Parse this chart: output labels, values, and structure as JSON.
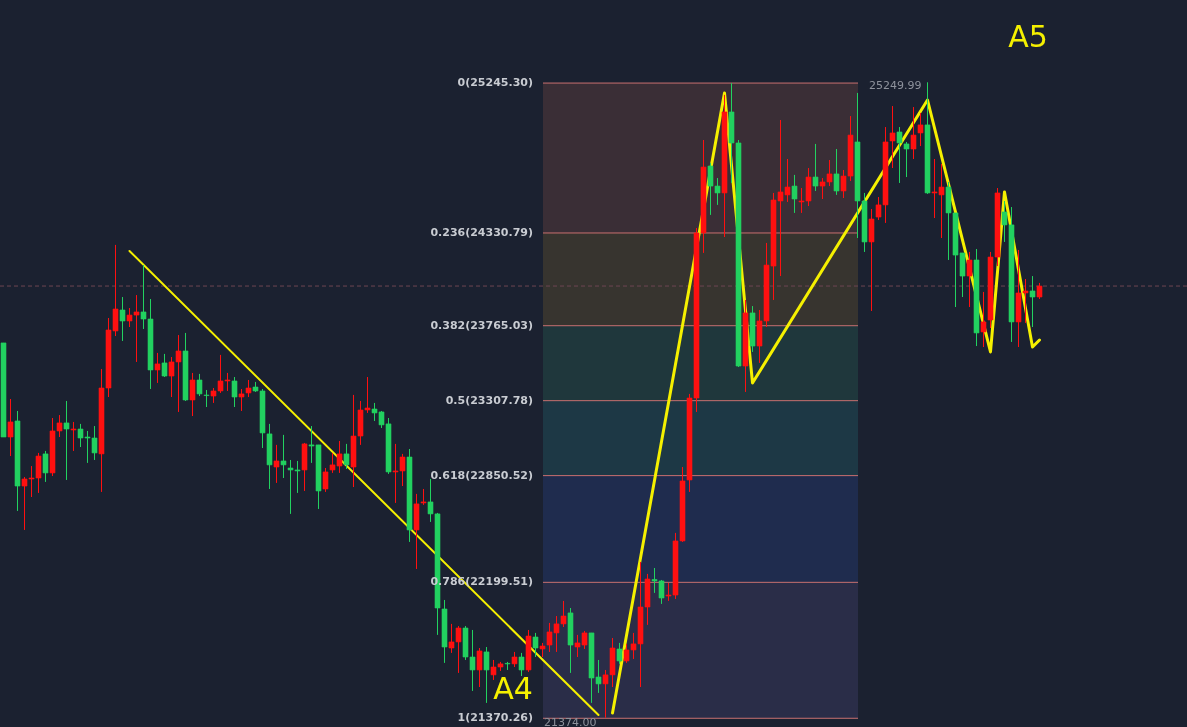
{
  "chart_data": {
    "type": "candlestick",
    "tick_labels": false,
    "ylim": [
      21317,
      25752
    ],
    "categories": [
      null,
      null,
      null,
      null,
      null,
      null,
      null,
      null,
      null,
      null,
      null,
      null,
      null,
      null,
      null,
      null,
      null,
      null,
      null,
      null,
      null,
      null,
      null,
      null,
      null,
      null,
      null,
      null,
      null,
      null,
      null,
      null,
      null,
      null,
      null,
      null,
      null,
      null,
      null,
      null,
      null,
      null,
      null,
      null,
      null,
      null,
      null,
      null,
      null,
      null,
      null,
      null,
      null,
      null,
      null,
      null,
      null,
      null,
      null,
      null,
      null,
      null,
      null,
      null,
      null,
      null,
      null,
      null,
      null,
      null,
      null,
      null,
      null,
      null,
      null,
      null,
      null,
      null,
      null,
      null,
      null,
      null,
      null,
      null,
      null,
      null,
      null,
      null,
      null,
      null,
      null,
      null,
      null,
      null,
      null,
      null,
      null,
      null,
      null,
      null,
      null,
      null,
      null,
      null,
      null,
      null,
      null,
      null,
      null,
      null,
      null,
      null,
      null,
      null,
      null,
      null,
      null,
      null,
      null,
      null,
      null,
      null,
      null,
      null,
      null,
      null,
      null,
      null,
      null,
      null,
      null,
      null,
      null,
      null,
      null,
      null,
      null,
      null,
      null,
      null,
      null,
      null,
      null,
      null,
      null,
      null,
      null,
      null,
      null
    ],
    "ohlc": [
      [
        23660,
        23660,
        23086,
        23086
      ],
      [
        23086,
        23318,
        22970,
        23178
      ],
      [
        23184,
        23245,
        22635,
        22787
      ],
      [
        22787,
        22842,
        22519,
        22830
      ],
      [
        22830,
        22909,
        22720,
        22836
      ],
      [
        22836,
        22989,
        22745,
        22970
      ],
      [
        22983,
        23001,
        22812,
        22867
      ],
      [
        22867,
        23202,
        22848,
        23123
      ],
      [
        23123,
        23220,
        23086,
        23172
      ],
      [
        23172,
        23306,
        22824,
        23135
      ],
      [
        23129,
        23178,
        23001,
        23135
      ],
      [
        23135,
        23166,
        23025,
        23080
      ],
      [
        23086,
        23123,
        22928,
        23080
      ],
      [
        23080,
        23153,
        22946,
        22989
      ],
      [
        22983,
        23501,
        22751,
        23385
      ],
      [
        23385,
        23812,
        23330,
        23739
      ],
      [
        23733,
        24258,
        23702,
        23867
      ],
      [
        23861,
        23940,
        23672,
        23794
      ],
      [
        23794,
        23873,
        23757,
        23830
      ],
      [
        23830,
        23952,
        23544,
        23849
      ],
      [
        23849,
        24135,
        23745,
        23806
      ],
      [
        23806,
        23928,
        23379,
        23495
      ],
      [
        23495,
        23599,
        23416,
        23532
      ],
      [
        23538,
        23593,
        23452,
        23458
      ],
      [
        23458,
        23574,
        23330,
        23544
      ],
      [
        23544,
        23708,
        23239,
        23611
      ],
      [
        23611,
        23721,
        23306,
        23312
      ],
      [
        23312,
        23477,
        23214,
        23434
      ],
      [
        23434,
        23471,
        23336,
        23349
      ],
      [
        23342,
        23373,
        23269,
        23339
      ],
      [
        23336,
        23385,
        23294,
        23367
      ],
      [
        23367,
        23587,
        23355,
        23428
      ],
      [
        23428,
        23477,
        23367,
        23434
      ],
      [
        23428,
        23452,
        23269,
        23330
      ],
      [
        23330,
        23379,
        23245,
        23349
      ],
      [
        23355,
        23434,
        23330,
        23385
      ],
      [
        23391,
        23422,
        23361,
        23367
      ],
      [
        23367,
        23379,
        23019,
        23111
      ],
      [
        23105,
        23166,
        22769,
        22916
      ],
      [
        22903,
        23038,
        22806,
        22940
      ],
      [
        22940,
        23099,
        22836,
        22916
      ],
      [
        22897,
        22946,
        22617,
        22885
      ],
      [
        22885,
        22940,
        22745,
        22879
      ],
      [
        22885,
        23050,
        22757,
        23044
      ],
      [
        23038,
        23153,
        22928,
        23031
      ],
      [
        23038,
        23038,
        22647,
        22757
      ],
      [
        22769,
        22897,
        22751,
        22873
      ],
      [
        22885,
        22989,
        22867,
        22916
      ],
      [
        22909,
        23062,
        22867,
        22983
      ],
      [
        22983,
        23044,
        22891,
        22916
      ],
      [
        22903,
        23343,
        22781,
        23092
      ],
      [
        23092,
        23306,
        23038,
        23251
      ],
      [
        23251,
        23452,
        23233,
        23263
      ],
      [
        23257,
        23294,
        23184,
        23233
      ],
      [
        23239,
        23245,
        23141,
        23160
      ],
      [
        23166,
        23202,
        22861,
        22873
      ],
      [
        22873,
        23044,
        22684,
        22879
      ],
      [
        22879,
        22983,
        22787,
        22964
      ],
      [
        22964,
        23013,
        22446,
        22519
      ],
      [
        22519,
        22739,
        22281,
        22678
      ],
      [
        22684,
        22769,
        22672,
        22690
      ],
      [
        22690,
        22830,
        22568,
        22617
      ],
      [
        22617,
        22623,
        21879,
        22043
      ],
      [
        22037,
        22092,
        21708,
        21805
      ],
      [
        21799,
        21946,
        21769,
        21836
      ],
      [
        21836,
        21933,
        21647,
        21921
      ],
      [
        21921,
        21933,
        21726,
        21744
      ],
      [
        21744,
        21909,
        21537,
        21665
      ],
      [
        21665,
        21799,
        21561,
        21781
      ],
      [
        21775,
        21805,
        21464,
        21665
      ],
      [
        21635,
        21726,
        21604,
        21683
      ],
      [
        21683,
        21714,
        21659,
        21702
      ],
      [
        21705,
        21714,
        21665,
        21702
      ],
      [
        21702,
        21775,
        21683,
        21744
      ],
      [
        21744,
        21769,
        21628,
        21665
      ],
      [
        21665,
        21909,
        21653,
        21872
      ],
      [
        21866,
        21891,
        21744,
        21799
      ],
      [
        21793,
        21830,
        21744,
        21811
      ],
      [
        21817,
        21952,
        21775,
        21897
      ],
      [
        21891,
        21994,
        21775,
        21946
      ],
      [
        21946,
        22086,
        21927,
        21994
      ],
      [
        22013,
        22043,
        21647,
        21817
      ],
      [
        21805,
        21879,
        21744,
        21830
      ],
      [
        21817,
        21903,
        21793,
        21891
      ],
      [
        21891,
        21891,
        21464,
        21616
      ],
      [
        21622,
        21726,
        21525,
        21580
      ],
      [
        21580,
        21665,
        21374,
        21635
      ],
      [
        21635,
        21860,
        21561,
        21799
      ],
      [
        21793,
        21830,
        21702,
        21720
      ],
      [
        21720,
        21824,
        21708,
        21787
      ],
      [
        21787,
        21891,
        21732,
        21824
      ],
      [
        21824,
        22324,
        21561,
        22049
      ],
      [
        22049,
        22251,
        21940,
        22220
      ],
      [
        22217,
        22287,
        22135,
        22208
      ],
      [
        22208,
        22214,
        22068,
        22104
      ],
      [
        22116,
        22196,
        22086,
        22122
      ],
      [
        22122,
        22501,
        22098,
        22452
      ],
      [
        22452,
        22903,
        22446,
        22818
      ],
      [
        22824,
        23349,
        22751,
        23324
      ],
      [
        23324,
        24361,
        23239,
        24331
      ],
      [
        24331,
        24898,
        24209,
        24733
      ],
      [
        24739,
        24758,
        24441,
        24617
      ],
      [
        24617,
        24666,
        24502,
        24575
      ],
      [
        24575,
        25173,
        24306,
        25069
      ],
      [
        25069,
        25245,
        24636,
        24880
      ],
      [
        24880,
        24898,
        23513,
        23519
      ],
      [
        23519,
        23922,
        23361,
        23843
      ],
      [
        23843,
        23885,
        23605,
        23641
      ],
      [
        23641,
        23861,
        23538,
        23794
      ],
      [
        23794,
        24270,
        23757,
        24135
      ],
      [
        24129,
        24575,
        23922,
        24532
      ],
      [
        24526,
        25020,
        24068,
        24581
      ],
      [
        24563,
        24782,
        24520,
        24611
      ],
      [
        24617,
        24685,
        24453,
        24538
      ],
      [
        24520,
        24605,
        24453,
        24526
      ],
      [
        24526,
        24727,
        24495,
        24672
      ],
      [
        24672,
        24874,
        24587,
        24617
      ],
      [
        24617,
        24666,
        24538,
        24642
      ],
      [
        24642,
        24776,
        24617,
        24691
      ],
      [
        24691,
        24843,
        24563,
        24587
      ],
      [
        24587,
        24715,
        24544,
        24678
      ],
      [
        24678,
        25044,
        24648,
        24928
      ],
      [
        24886,
        25185,
        24300,
        24526
      ],
      [
        24526,
        24575,
        24215,
        24276
      ],
      [
        24276,
        24477,
        23855,
        24416
      ],
      [
        24428,
        24550,
        24410,
        24502
      ],
      [
        24502,
        24977,
        24392,
        24886
      ],
      [
        24892,
        25105,
        24727,
        24941
      ],
      [
        24947,
        24977,
        24636,
        24880
      ],
      [
        24874,
        24886,
        24672,
        24843
      ],
      [
        24843,
        25099,
        24782,
        24928
      ],
      [
        24941,
        25063,
        24861,
        24990
      ],
      [
        24990,
        25249.99,
        24569,
        24575
      ],
      [
        24575,
        24782,
        24422,
        24581
      ],
      [
        24563,
        24752,
        24300,
        24611
      ],
      [
        24611,
        24642,
        24166,
        24453
      ],
      [
        24453,
        24453,
        23879,
        24196
      ],
      [
        24209,
        24209,
        23940,
        24068
      ],
      [
        24068,
        24215,
        23879,
        24166
      ],
      [
        24166,
        24233,
        23641,
        23721
      ],
      [
        23727,
        23971,
        23635,
        23788
      ],
      [
        23800,
        24215,
        23751,
        24184
      ],
      [
        24184,
        24605,
        24129,
        24575
      ],
      [
        24459,
        24526,
        24276,
        24380
      ],
      [
        24380,
        24489,
        23666,
        23788
      ],
      [
        23788,
        24227,
        23635,
        23965
      ],
      [
        23965,
        24050,
        23782,
        23977
      ],
      [
        23977,
        24068,
        23757,
        23940
      ],
      [
        23940,
        24026,
        23928,
        24007
      ]
    ],
    "colors": [
      "#22d160",
      "#ff1010",
      "#22d160",
      "#ff1010",
      "#ff1010",
      "#ff1010",
      "#22d160",
      "#ff1010",
      "#ff1010",
      "#22d160",
      "#ff1010",
      "#22d160",
      "#22d160",
      "#22d160",
      "#ff1010",
      "#ff1010",
      "#ff1010",
      "#22d160",
      "#ff1010",
      "#ff1010",
      "#22d160",
      "#22d160",
      "#ff1010",
      "#22d160",
      "#ff1010",
      "#ff1010",
      "#22d160",
      "#ff1010",
      "#22d160",
      "#22d160",
      "#ff1010",
      "#ff1010",
      "#ff1010",
      "#22d160",
      "#ff1010",
      "#ff1010",
      "#22d160",
      "#22d160",
      "#22d160",
      "#ff1010",
      "#22d160",
      "#22d160",
      "#22d160",
      "#ff1010",
      "#22d160",
      "#22d160",
      "#ff1010",
      "#ff1010",
      "#ff1010",
      "#22d160",
      "#ff1010",
      "#ff1010",
      "#ff1010",
      "#22d160",
      "#22d160",
      "#22d160",
      "#ff1010",
      "#ff1010",
      "#22d160",
      "#ff1010",
      "#ff1010",
      "#22d160",
      "#22d160",
      "#22d160",
      "#ff1010",
      "#ff1010",
      "#22d160",
      "#22d160",
      "#ff1010",
      "#22d160",
      "#ff1010",
      "#ff1010",
      "#22d160",
      "#ff1010",
      "#22d160",
      "#ff1010",
      "#22d160",
      "#ff1010",
      "#ff1010",
      "#ff1010",
      "#ff1010",
      "#22d160",
      "#ff1010",
      "#ff1010",
      "#22d160",
      "#22d160",
      "#ff1010",
      "#ff1010",
      "#22d160",
      "#ff1010",
      "#ff1010",
      "#ff1010",
      "#ff1010",
      "#22d160",
      "#22d160",
      "#ff1010",
      "#ff1010",
      "#ff1010",
      "#ff1010",
      "#ff1010",
      "#ff1010",
      "#22d160",
      "#22d160",
      "#ff1010",
      "#22d160",
      "#22d160",
      "#ff1010",
      "#22d160",
      "#ff1010",
      "#ff1010",
      "#ff1010",
      "#ff1010",
      "#ff1010",
      "#22d160",
      "#ff1010",
      "#ff1010",
      "#22d160",
      "#ff1010",
      "#ff1010",
      "#22d160",
      "#ff1010",
      "#ff1010",
      "#22d160",
      "#22d160",
      "#ff1010",
      "#ff1010",
      "#ff1010",
      "#ff1010",
      "#22d160",
      "#22d160",
      "#ff1010",
      "#ff1010",
      "#22d160",
      "#ff1010",
      "#ff1010",
      "#22d160",
      "#22d160",
      "#22d160",
      "#ff1010",
      "#22d160",
      "#ff1010",
      "#ff1010",
      "#ff1010",
      "#22d160",
      "#22d160",
      "#ff1010",
      "#ff1010",
      "#22d160",
      "#ff1010"
    ],
    "bands": [
      {
        "axis": "y",
        "from": 24330.79,
        "to": 25245.3,
        "color": "#3a2e36"
      },
      {
        "axis": "y",
        "from": 23765.03,
        "to": 24330.79,
        "color": "#37342f"
      },
      {
        "axis": "y",
        "from": 23307.78,
        "to": 23765.03,
        "color": "#1f373c"
      },
      {
        "axis": "y",
        "from": 22850.52,
        "to": 23307.78,
        "color": "#1d3845"
      },
      {
        "axis": "y",
        "from": 22199.51,
        "to": 22850.52,
        "color": "#1f2c4e"
      },
      {
        "axis": "y",
        "from": 21370.26,
        "to": 22199.51,
        "color": "#2a2d48"
      }
    ],
    "ref_lines": [
      {
        "axis": "y",
        "value": 25245.3,
        "label": "0(25245.30)",
        "color": "#c87070"
      },
      {
        "axis": "y",
        "value": 24330.79,
        "label": "0.236(24330.79)",
        "color": "#c87070"
      },
      {
        "axis": "y",
        "value": 23765.03,
        "label": "0.382(23765.03)",
        "color": "#c87070"
      },
      {
        "axis": "y",
        "value": 23307.78,
        "label": "0.5(23307.78)",
        "color": "#c87070"
      },
      {
        "axis": "y",
        "value": 22850.52,
        "label": "0.618(22850.52)",
        "color": "#c87070"
      },
      {
        "axis": "y",
        "value": 22199.51,
        "label": "0.786(22199.51)",
        "color": "#c87070"
      },
      {
        "axis": "y",
        "value": 21370.26,
        "label": "1(21370.26)",
        "color": "#c87070"
      },
      {
        "axis": "y",
        "value": 24007,
        "color": "#6e4652",
        "line_style": "dashed"
      }
    ],
    "series": [
      {
        "type": "line",
        "color": "#f5f000",
        "values": [
          null,
          null,
          null,
          null,
          null,
          null,
          null,
          null,
          null,
          null,
          null,
          null,
          null,
          null,
          null,
          null,
          null,
          null,
          24221,
          null,
          null,
          null,
          null,
          null,
          null,
          null,
          null,
          null,
          null,
          null,
          null,
          null,
          null,
          null,
          null,
          null,
          null,
          null,
          null,
          null,
          null,
          null,
          null,
          null,
          null,
          null,
          null,
          null,
          null,
          null,
          null,
          null,
          null,
          null,
          null,
          null,
          null,
          null,
          null,
          null,
          null,
          null,
          null,
          null,
          null,
          null,
          null,
          null,
          null,
          null,
          null,
          null,
          null,
          null,
          null,
          null,
          null,
          null,
          null,
          null,
          null,
          null,
          null,
          null,
          null,
          21390,
          null,
          null,
          null,
          null,
          null,
          null,
          null,
          null,
          null,
          null,
          null,
          null,
          null,
          null,
          null,
          null,
          null,
          null,
          null,
          null,
          null,
          null,
          null,
          null,
          null,
          null,
          null,
          null,
          null,
          null,
          null,
          null,
          null,
          null,
          null,
          null,
          null,
          null,
          null,
          null,
          null,
          null,
          null,
          null,
          null,
          null,
          null,
          null,
          null,
          null,
          null,
          null,
          null,
          null,
          null,
          null,
          null,
          null,
          null,
          null,
          null,
          null,
          null
        ]
      },
      {
        "type": "line",
        "color": "#f5f000",
        "values": [
          null,
          null,
          null,
          null,
          null,
          null,
          null,
          null,
          null,
          null,
          null,
          null,
          null,
          null,
          null,
          null,
          null,
          null,
          null,
          null,
          null,
          null,
          null,
          null,
          null,
          null,
          null,
          null,
          null,
          null,
          null,
          null,
          null,
          null,
          null,
          null,
          null,
          null,
          null,
          null,
          null,
          null,
          null,
          null,
          null,
          null,
          null,
          null,
          null,
          null,
          null,
          null,
          null,
          null,
          null,
          null,
          null,
          null,
          null,
          null,
          null,
          null,
          null,
          null,
          null,
          null,
          null,
          null,
          null,
          null,
          null,
          null,
          null,
          null,
          null,
          null,
          null,
          null,
          null,
          null,
          null,
          null,
          null,
          null,
          null,
          null,
          null,
          21403,
          null,
          null,
          null,
          null,
          null,
          null,
          null,
          null,
          null,
          null,
          null,
          null,
          null,
          null,
          null,
          25185,
          null,
          null,
          null,
          23416,
          null,
          null,
          null,
          null,
          null,
          null,
          null,
          null,
          null,
          null,
          null,
          null,
          null,
          null,
          null,
          null,
          null,
          null,
          null,
          null,
          null,
          null,
          null,
          null,
          25142,
          null,
          null,
          null,
          null,
          null,
          null,
          null,
          null,
          23605,
          null,
          24581,
          null,
          null,
          null,
          23635,
          23678
        ]
      }
    ],
    "annotations": [
      "A4",
      "A5",
      {
        "text": "21374.00",
        "y": 21374
      },
      "25249.99"
    ]
  }
}
